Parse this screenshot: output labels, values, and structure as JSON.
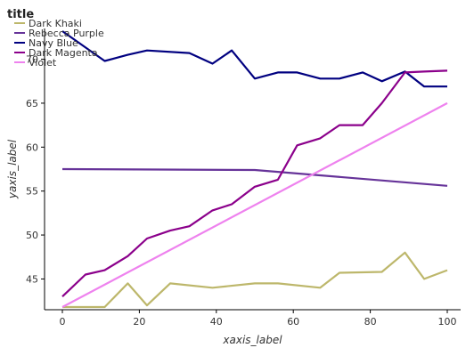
{
  "chart_data": {
    "type": "line",
    "title": "title",
    "xlabel": "xaxis_label",
    "ylabel": "yaxis_label",
    "xlim": [
      0,
      100
    ],
    "ylim": [
      41.5,
      73.5
    ],
    "xticks": [
      "0",
      "20",
      "40",
      "60",
      "80",
      "100"
    ],
    "xtick_values": [
      0,
      20,
      40,
      60,
      80,
      100
    ],
    "yticks": [
      "45",
      "50",
      "55",
      "60",
      "65",
      "70"
    ],
    "ytick_values": [
      45,
      50,
      55,
      60,
      65,
      70
    ],
    "grid": false,
    "legend_position": "top-left",
    "series": [
      {
        "name": "Dark Khaki",
        "color": "#bdb76b",
        "x": [
          0,
          6,
          11,
          17,
          22,
          28,
          39,
          50,
          56,
          67,
          72,
          83,
          89,
          94,
          100
        ],
        "y": [
          41.8,
          41.8,
          41.8,
          44.5,
          42.0,
          44.5,
          44.0,
          44.5,
          44.5,
          44.0,
          45.7,
          45.8,
          48.0,
          45.0,
          46.0
        ]
      },
      {
        "name": "Rebecca Purple",
        "color": "#663399",
        "x": [
          0,
          50,
          100
        ],
        "y": [
          57.5,
          57.4,
          55.6
        ]
      },
      {
        "name": "Navy Blue",
        "color": "#000080",
        "x": [
          0,
          11,
          17,
          22,
          33,
          39,
          44,
          50,
          56,
          61,
          67,
          72,
          78,
          83,
          89,
          94,
          100
        ],
        "y": [
          73.2,
          69.8,
          70.5,
          71.0,
          70.7,
          69.5,
          71.0,
          67.8,
          68.5,
          68.5,
          67.8,
          67.8,
          68.5,
          67.5,
          68.6,
          66.9,
          66.9
        ]
      },
      {
        "name": "Dark Magenta",
        "color": "#8b008b",
        "x": [
          0,
          6,
          11,
          17,
          22,
          28,
          33,
          39,
          44,
          50,
          56,
          61,
          67,
          72,
          78,
          83,
          89,
          94,
          100
        ],
        "y": [
          43.0,
          45.5,
          46.0,
          47.6,
          49.6,
          50.5,
          51.0,
          52.8,
          53.5,
          55.5,
          56.3,
          60.2,
          61.0,
          62.5,
          62.5,
          65.0,
          68.5,
          68.6,
          68.7
        ]
      },
      {
        "name": "Violet",
        "color": "#ee82ee",
        "x": [
          0,
          100
        ],
        "y": [
          41.8,
          65.0
        ]
      }
    ]
  }
}
